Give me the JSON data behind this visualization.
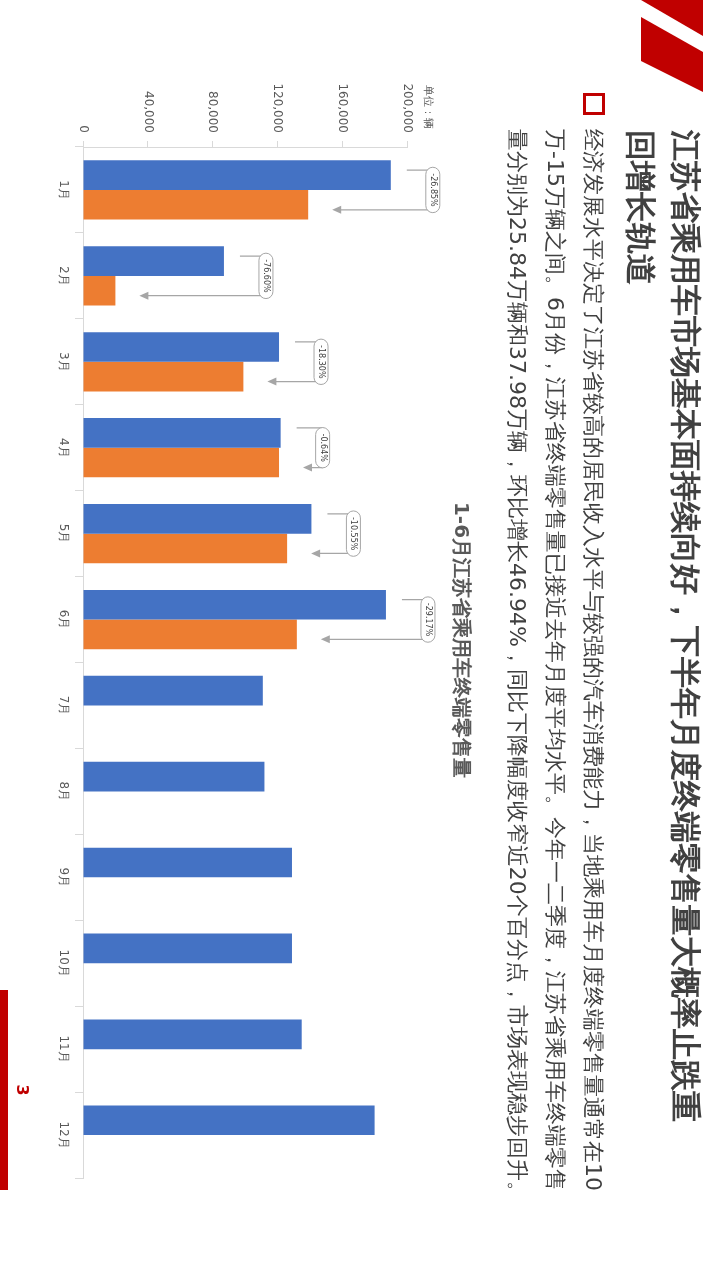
{
  "chart_data": {
    "type": "bar",
    "orientation": "horizontal",
    "title": "江苏省乘用车市场基本面持续向好，下半年月度终端零售量大概率止跌重回增长轨道",
    "subtitle": "1-6月江苏省乘用车终端零售量",
    "categories": [
      "1月",
      "2月",
      "3月",
      "4月",
      "5月",
      "6月",
      "7月",
      "8月",
      "9月",
      "10月",
      "11月",
      "12月"
    ],
    "series": [
      {
        "color": "#4472c4",
        "values": [
          190000,
          87000,
          121000,
          122000,
          141000,
          187000,
          111000,
          112000,
          129000,
          129000,
          135000,
          180000
        ]
      },
      {
        "color": "#ed7d31",
        "values": [
          139000,
          20000,
          99000,
          121000,
          126000,
          132000,
          null,
          null,
          null,
          null,
          null,
          null
        ]
      }
    ],
    "xlim": [
      0,
      200000
    ],
    "xticks": [
      0,
      {
        "value": 40000,
        "label": "40,000"
      },
      {
        "value": 80000,
        "label": "80,000"
      },
      {
        "value": 120000,
        "label": "120,000"
      },
      {
        "value": 160000,
        "label": "160,000"
      },
      {
        "value": 200000,
        "label": "200,000"
      }
    ],
    "grid": false,
    "annotations": [
      "经济发展水平决定了江苏省较高的居民收入水平与较强的汽车消费能力，当地乘用车月度终端零售量通常在10万-15万辆之间。6月份，江苏省终端零售量已接近去年月度平均水平。今年一二季度，江苏省乘用车终端零售量分别为25.84万辆和37.98万辆，环比增长46.94%，同比下降幅度收窄近20个百分点，市场表现稳步回升。",
      "单位：辆",
      "3",
      "-26.85%",
      "-76.60%",
      "-18.30%",
      "-0.64%",
      "-10.55%",
      "-29.17%"
    ]
  }
}
